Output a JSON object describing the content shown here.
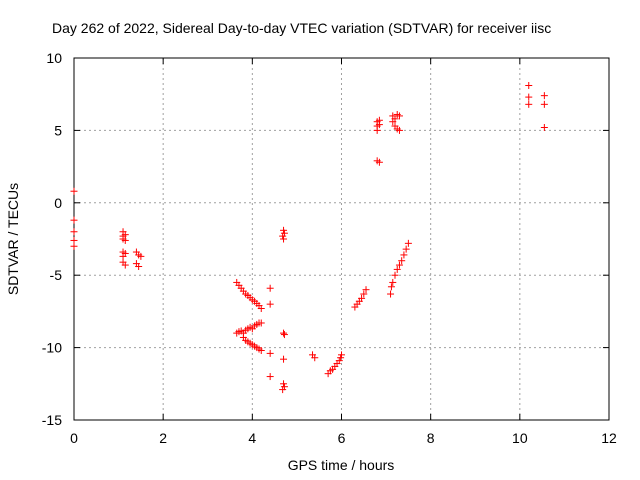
{
  "chart_data": {
    "type": "scatter",
    "title": "Day 262 of 2022, Sidereal Day-to-day VTEC variation (SDTVAR) for receiver iisc",
    "xlabel": "GPS time / hours",
    "ylabel": "SDTVAR / TECUs",
    "xlim": [
      0,
      12
    ],
    "ylim": [
      -15,
      10
    ],
    "xticks": [
      0,
      2,
      4,
      6,
      8,
      10,
      12
    ],
    "yticks": [
      -15,
      -10,
      -5,
      0,
      5,
      10
    ],
    "grid": true,
    "marker": "+",
    "marker_color": "#ff0000",
    "series": [
      {
        "name": "SDTVAR",
        "points": [
          [
            0.0,
            0.8
          ],
          [
            0.0,
            -1.2
          ],
          [
            0.0,
            -2.0
          ],
          [
            0.0,
            -2.6
          ],
          [
            0.0,
            -3.0
          ],
          [
            1.1,
            -2.0
          ],
          [
            1.1,
            -2.3
          ],
          [
            1.1,
            -2.5
          ],
          [
            1.15,
            -2.2
          ],
          [
            1.15,
            -2.6
          ],
          [
            1.1,
            -3.4
          ],
          [
            1.1,
            -3.7
          ],
          [
            1.15,
            -3.5
          ],
          [
            1.1,
            -4.1
          ],
          [
            1.15,
            -4.3
          ],
          [
            1.4,
            -3.4
          ],
          [
            1.45,
            -3.6
          ],
          [
            1.5,
            -3.7
          ],
          [
            1.4,
            -4.2
          ],
          [
            1.45,
            -4.4
          ],
          [
            3.65,
            -5.5
          ],
          [
            3.7,
            -5.7
          ],
          [
            3.75,
            -5.9
          ],
          [
            3.8,
            -6.1
          ],
          [
            3.85,
            -6.3
          ],
          [
            3.9,
            -6.4
          ],
          [
            3.95,
            -6.55
          ],
          [
            4.0,
            -6.7
          ],
          [
            4.05,
            -6.8
          ],
          [
            4.1,
            -6.95
          ],
          [
            4.15,
            -7.1
          ],
          [
            4.2,
            -7.3
          ],
          [
            3.65,
            -9.0
          ],
          [
            3.7,
            -8.9
          ],
          [
            3.75,
            -8.85
          ],
          [
            3.8,
            -9.0
          ],
          [
            3.85,
            -8.8
          ],
          [
            3.9,
            -8.7
          ],
          [
            3.95,
            -8.6
          ],
          [
            4.0,
            -8.7
          ],
          [
            4.05,
            -8.5
          ],
          [
            4.1,
            -8.4
          ],
          [
            4.15,
            -8.3
          ],
          [
            4.2,
            -8.3
          ],
          [
            3.8,
            -9.3
          ],
          [
            3.85,
            -9.5
          ],
          [
            3.9,
            -9.6
          ],
          [
            3.95,
            -9.7
          ],
          [
            4.0,
            -9.8
          ],
          [
            4.05,
            -9.9
          ],
          [
            4.1,
            -10.0
          ],
          [
            4.15,
            -10.1
          ],
          [
            4.2,
            -10.2
          ],
          [
            4.4,
            -5.9
          ],
          [
            4.4,
            -7.0
          ],
          [
            4.4,
            -10.4
          ],
          [
            4.4,
            -12.0
          ],
          [
            4.7,
            -1.9
          ],
          [
            4.72,
            -2.1
          ],
          [
            4.68,
            -2.3
          ],
          [
            4.7,
            -2.5
          ],
          [
            4.7,
            -9.0
          ],
          [
            4.72,
            -9.1
          ],
          [
            4.7,
            -10.8
          ],
          [
            4.7,
            -12.5
          ],
          [
            4.72,
            -12.7
          ],
          [
            4.68,
            -12.9
          ],
          [
            5.35,
            -10.5
          ],
          [
            5.4,
            -10.7
          ],
          [
            5.7,
            -11.8
          ],
          [
            5.75,
            -11.6
          ],
          [
            5.8,
            -11.5
          ],
          [
            5.85,
            -11.3
          ],
          [
            5.9,
            -11.1
          ],
          [
            5.95,
            -10.9
          ],
          [
            5.98,
            -10.7
          ],
          [
            6.0,
            -10.5
          ],
          [
            6.3,
            -7.2
          ],
          [
            6.35,
            -7.0
          ],
          [
            6.4,
            -6.8
          ],
          [
            6.45,
            -6.6
          ],
          [
            6.5,
            -6.3
          ],
          [
            6.55,
            -6.0
          ],
          [
            6.8,
            5.6
          ],
          [
            6.8,
            5.3
          ],
          [
            6.8,
            5.0
          ],
          [
            6.85,
            5.4
          ],
          [
            6.85,
            5.7
          ],
          [
            6.8,
            2.9
          ],
          [
            6.85,
            2.8
          ],
          [
            7.1,
            -6.3
          ],
          [
            7.12,
            -5.8
          ],
          [
            7.15,
            -5.5
          ],
          [
            7.2,
            -5.0
          ],
          [
            7.25,
            -4.6
          ],
          [
            7.3,
            -4.3
          ],
          [
            7.35,
            -4.0
          ],
          [
            7.4,
            -3.6
          ],
          [
            7.45,
            -3.2
          ],
          [
            7.5,
            -2.8
          ],
          [
            7.15,
            6.0
          ],
          [
            7.2,
            5.8
          ],
          [
            7.25,
            6.1
          ],
          [
            7.3,
            6.0
          ],
          [
            7.15,
            5.6
          ],
          [
            7.2,
            5.3
          ],
          [
            7.25,
            5.1
          ],
          [
            7.3,
            5.0
          ],
          [
            10.2,
            8.1
          ],
          [
            10.2,
            7.3
          ],
          [
            10.2,
            6.8
          ],
          [
            10.55,
            7.4
          ],
          [
            10.55,
            6.8
          ],
          [
            10.55,
            5.2
          ]
        ]
      }
    ]
  }
}
